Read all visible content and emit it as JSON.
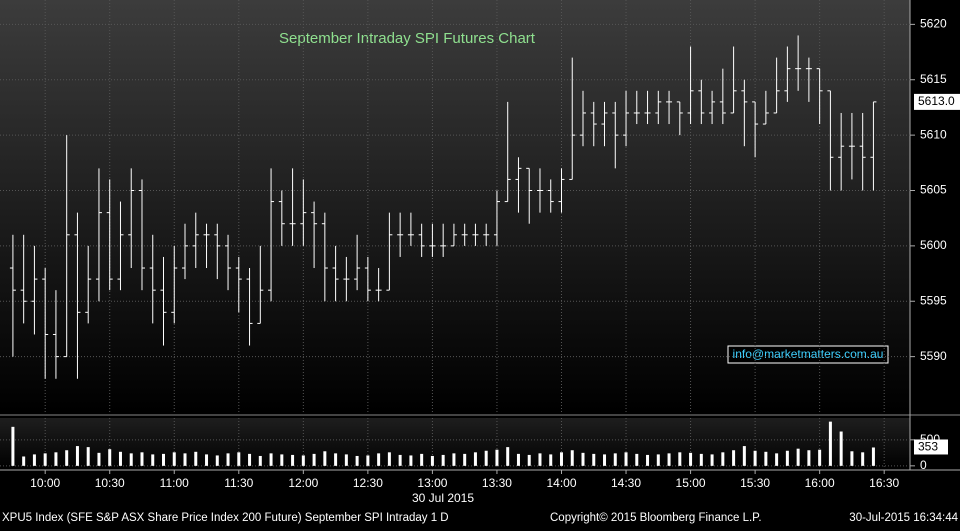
{
  "chart_data": {
    "type": "ohlc",
    "title": "September Intraday SPI Futures Chart",
    "annotation": "info@marketmatters.com.au",
    "date_label": "30 Jul 2015",
    "color": "#ffffff",
    "title_color": "#8fe08f",
    "grid": true,
    "x": [
      -15,
      -10,
      -5,
      0,
      5,
      10,
      15,
      20,
      25,
      30,
      35,
      40,
      45,
      50,
      55,
      60,
      65,
      70,
      75,
      80,
      85,
      90,
      95,
      100,
      105,
      110,
      115,
      120,
      125,
      130,
      135,
      140,
      145,
      150,
      155,
      160,
      165,
      170,
      175,
      180,
      185,
      190,
      195,
      200,
      205,
      210,
      215,
      220,
      225,
      230,
      235,
      240,
      245,
      250,
      255,
      260,
      265,
      270,
      275,
      280,
      285,
      290,
      295,
      300,
      305,
      310,
      315,
      320,
      325,
      330,
      335,
      340,
      345,
      350,
      355,
      360,
      365,
      370,
      375,
      380,
      385
    ],
    "open": [
      5598,
      5596,
      5595,
      5597,
      5592,
      5590,
      5601,
      5594,
      5597,
      5603,
      5597,
      5601,
      5605,
      5598,
      5596,
      5594,
      5598,
      5600,
      5601,
      5601,
      5600,
      5598,
      5597,
      5593,
      5596,
      5604,
      5602,
      5602,
      5603,
      5602,
      5598,
      5597,
      5597,
      5598,
      5596,
      5596,
      5601,
      5601,
      5601,
      5600,
      5600,
      5600,
      5601,
      5601,
      5601,
      5601,
      5604,
      5606,
      5607,
      5605,
      5605,
      5604,
      5606,
      5610,
      5612,
      5611,
      5612,
      5610,
      5612,
      5612,
      5612,
      5613,
      5613,
      5612,
      5614,
      5612,
      5613,
      5612,
      5614,
      5613,
      5611,
      5612,
      5614,
      5616,
      5616,
      5616,
      5614,
      5608,
      5609,
      5609,
      5608
    ],
    "high": [
      5601,
      5601,
      5600,
      5598,
      5596,
      5610,
      5603,
      5600,
      5607,
      5606,
      5604,
      5607,
      5606,
      5601,
      5599,
      5600,
      5602,
      5603,
      5602,
      5602,
      5601,
      5599,
      5598,
      5600,
      5607,
      5605,
      5607,
      5606,
      5604,
      5603,
      5600,
      5599,
      5601,
      5599,
      5598,
      5603,
      5603,
      5603,
      5602,
      5602,
      5602,
      5602,
      5602,
      5602,
      5602,
      5605,
      5613,
      5608,
      5607,
      5607,
      5606,
      5607,
      5617,
      5614,
      5613,
      5613,
      5613,
      5614,
      5614,
      5614,
      5614,
      5614,
      5613,
      5618,
      5615,
      5614,
      5616,
      5618,
      5615,
      5613,
      5614,
      5617,
      5618,
      5619,
      5617,
      5616,
      5614,
      5612,
      5612,
      5612,
      5613
    ],
    "low": [
      5590,
      5593,
      5592,
      5588,
      5588,
      5590,
      5588,
      5593,
      5595,
      5596,
      5596,
      5598,
      5596,
      5593,
      5591,
      5593,
      5597,
      5598,
      5598,
      5597,
      5596,
      5594,
      5591,
      5593,
      5595,
      5600,
      5600,
      5600,
      5598,
      5595,
      5595,
      5595,
      5596,
      5595,
      5595,
      5596,
      5599,
      5600,
      5599,
      5599,
      5599,
      5600,
      5600,
      5600,
      5600,
      5600,
      5604,
      5603,
      5602,
      5603,
      5603,
      5603,
      5606,
      5609,
      5609,
      5609,
      5607,
      5609,
      5611,
      5611,
      5611,
      5611,
      5610,
      5611,
      5611,
      5611,
      5611,
      5612,
      5609,
      5608,
      5611,
      5612,
      5613,
      5614,
      5613,
      5611,
      5605,
      5605,
      5606,
      5605,
      5605
    ],
    "close": [
      5596,
      5595,
      5597,
      5592,
      5590,
      5601,
      5594,
      5597,
      5603,
      5597,
      5601,
      5605,
      5598,
      5596,
      5594,
      5598,
      5600,
      5601,
      5601,
      5600,
      5598,
      5597,
      5593,
      5596,
      5604,
      5602,
      5602,
      5603,
      5602,
      5598,
      5597,
      5597,
      5598,
      5596,
      5596,
      5601,
      5601,
      5601,
      5600,
      5600,
      5600,
      5601,
      5601,
      5601,
      5601,
      5604,
      5606,
      5607,
      5605,
      5605,
      5604,
      5606,
      5610,
      5612,
      5611,
      5612,
      5610,
      5612,
      5612,
      5612,
      5613,
      5613,
      5612,
      5614,
      5612,
      5613,
      5612,
      5614,
      5613,
      5611,
      5612,
      5614,
      5616,
      5616,
      5616,
      5614,
      5608,
      5609,
      5609,
      5608,
      5613
    ],
    "xlim": [
      -21,
      402
    ],
    "xticks": [
      {
        "value": 0,
        "label": "10:00"
      },
      {
        "value": 30,
        "label": "10:30"
      },
      {
        "value": 60,
        "label": "11:00"
      },
      {
        "value": 90,
        "label": "11:30"
      },
      {
        "value": 120,
        "label": "12:00"
      },
      {
        "value": 150,
        "label": "12:30"
      },
      {
        "value": 180,
        "label": "13:00"
      },
      {
        "value": 210,
        "label": "13:30"
      },
      {
        "value": 240,
        "label": "14:00"
      },
      {
        "value": 270,
        "label": "14:30"
      },
      {
        "value": 300,
        "label": "15:00"
      },
      {
        "value": 330,
        "label": "15:30"
      },
      {
        "value": 360,
        "label": "16:00"
      },
      {
        "value": 390,
        "label": "16:30"
      }
    ],
    "ylim": [
      5585,
      5622.2
    ],
    "yticks": [
      5590,
      5595,
      5600,
      5605,
      5610,
      5615,
      5620
    ],
    "last_price": {
      "value": 5613,
      "label": "5613.0"
    },
    "volume": {
      "values": [
        750,
        180,
        220,
        240,
        260,
        300,
        380,
        360,
        250,
        320,
        270,
        240,
        260,
        220,
        230,
        260,
        240,
        270,
        220,
        200,
        240,
        260,
        230,
        190,
        240,
        220,
        210,
        200,
        230,
        280,
        240,
        220,
        190,
        200,
        240,
        260,
        210,
        200,
        230,
        190,
        210,
        240,
        230,
        260,
        290,
        310,
        360,
        230,
        210,
        240,
        220,
        260,
        300,
        250,
        230,
        220,
        240,
        260,
        230,
        210,
        220,
        240,
        260,
        250,
        230,
        220,
        260,
        300,
        380,
        290,
        270,
        240,
        290,
        330,
        300,
        310,
        850,
        660,
        280,
        260,
        353
      ],
      "ylim": [
        -80,
        920
      ],
      "yticks": [
        0,
        500
      ]
    }
  },
  "footer": {
    "security": "XPU5 Index (SFE S&P ASX Share Price Index 200 Future) September SPI Intraday 1 D",
    "copyright": "Copyright© 2015 Bloomberg Finance L.P.",
    "timestamp": "30-Jul-2015 16:34:44"
  }
}
